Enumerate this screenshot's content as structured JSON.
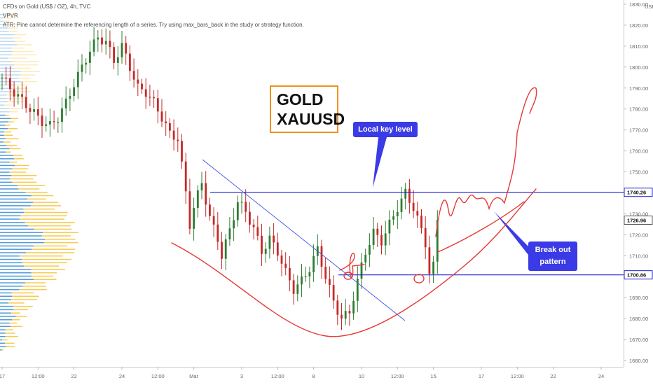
{
  "header": {
    "title": "CFDs on Gold (US$ / OZ), 4h, TVC",
    "indicator": "VPVR",
    "error": "ATR: Pine cannot determine the referencing length of a series. Try using max_bars_back in the study or strategy function."
  },
  "annotations": {
    "gold_line1": "GOLD",
    "gold_line2": "XAUUSD",
    "key_level": "Local key level",
    "break_out_line1": "Break out",
    "break_out_line2": "pattern"
  },
  "colors": {
    "up": "#2e7d32",
    "down": "#c62828",
    "level": "#1f1fd1",
    "trendline": "#3f51e0",
    "drawing": "#e53935",
    "vp_blue": "#3d8fd6",
    "vp_yellow": "#f6c33a"
  },
  "chart_data": {
    "type": "candlestick",
    "symbol": "XAUUSD",
    "timeframe": "4h",
    "y_axis": {
      "unit": "USD",
      "ylim": [
        1657,
        1832
      ],
      "ticks": [
        1660,
        1670,
        1680,
        1690,
        1700,
        1710,
        1720,
        1730,
        1740,
        1750,
        1760,
        1770,
        1780,
        1790,
        1800,
        1810,
        1820,
        1830
      ]
    },
    "x_axis": {
      "ticks": [
        {
          "label": "17",
          "bar": 0
        },
        {
          "label": "12:00",
          "bar": 9
        },
        {
          "label": "22",
          "bar": 18
        },
        {
          "label": "24",
          "bar": 30
        },
        {
          "label": "12:00",
          "bar": 39
        },
        {
          "label": "Mar",
          "bar": 48
        },
        {
          "label": "3",
          "bar": 60
        },
        {
          "label": "12:00",
          "bar": 69
        },
        {
          "label": "8",
          "bar": 78
        },
        {
          "label": "10",
          "bar": 90
        },
        {
          "label": "12:00",
          "bar": 99
        },
        {
          "label": "15",
          "bar": 108
        },
        {
          "label": "17",
          "bar": 120
        },
        {
          "label": "12:00",
          "bar": 129
        },
        {
          "label": "22",
          "bar": 138
        },
        {
          "label": "24",
          "bar": 150
        }
      ]
    },
    "price_labels": [
      {
        "value": 1740.26,
        "label": "1740.26",
        "style": "level"
      },
      {
        "value": 1726.96,
        "label": "1726.96",
        "style": "last"
      },
      {
        "value": 1700.86,
        "label": "1700.86",
        "style": "level"
      }
    ],
    "key_levels": [
      1740.26,
      1700.86
    ],
    "close_path": [
      [
        0,
        1795
      ],
      [
        2,
        1790
      ],
      [
        4,
        1786
      ],
      [
        6,
        1782
      ],
      [
        8,
        1778
      ],
      [
        10,
        1774
      ],
      [
        12,
        1772
      ],
      [
        14,
        1776
      ],
      [
        16,
        1783
      ],
      [
        18,
        1792
      ],
      [
        20,
        1800
      ],
      [
        22,
        1808
      ],
      [
        24,
        1814
      ],
      [
        26,
        1812
      ],
      [
        28,
        1803
      ],
      [
        30,
        1810
      ],
      [
        32,
        1800
      ],
      [
        34,
        1790
      ],
      [
        36,
        1788
      ],
      [
        38,
        1783
      ],
      [
        40,
        1776
      ],
      [
        42,
        1768
      ],
      [
        44,
        1766
      ],
      [
        46,
        1740
      ],
      [
        47,
        1725
      ],
      [
        48,
        1733
      ],
      [
        50,
        1745
      ],
      [
        52,
        1728
      ],
      [
        54,
        1718
      ],
      [
        55,
        1710
      ],
      [
        57,
        1722
      ],
      [
        59,
        1736
      ],
      [
        61,
        1731
      ],
      [
        63,
        1723
      ],
      [
        65,
        1712
      ],
      [
        67,
        1718
      ],
      [
        69,
        1712
      ],
      [
        71,
        1702
      ],
      [
        73,
        1694
      ],
      [
        75,
        1698
      ],
      [
        77,
        1704
      ],
      [
        79,
        1713
      ],
      [
        81,
        1700
      ],
      [
        83,
        1688
      ],
      [
        85,
        1680
      ],
      [
        87,
        1683
      ],
      [
        89,
        1698
      ],
      [
        91,
        1712
      ],
      [
        93,
        1721
      ],
      [
        95,
        1717
      ],
      [
        97,
        1725
      ],
      [
        99,
        1733
      ],
      [
        101,
        1740
      ],
      [
        103,
        1733
      ],
      [
        105,
        1722
      ],
      [
        106,
        1716
      ],
      [
        107,
        1702
      ],
      [
        108,
        1705
      ],
      [
        109,
        1727
      ]
    ]
  }
}
